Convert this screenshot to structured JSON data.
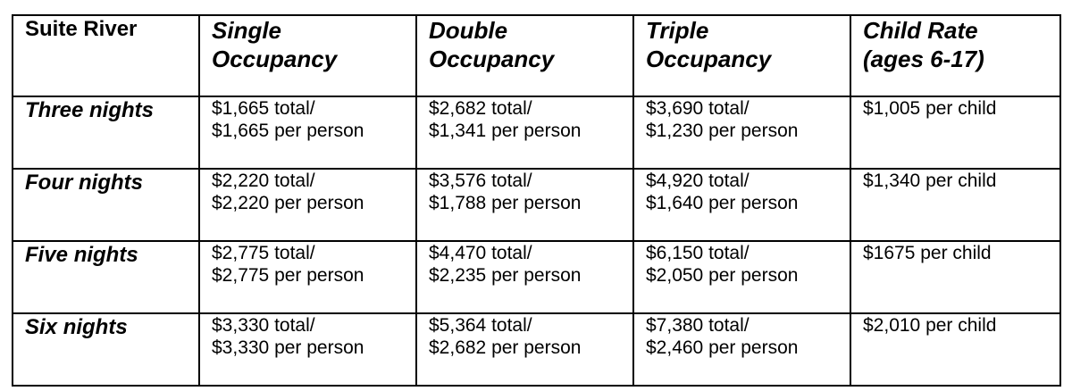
{
  "table": {
    "corner_label": "Suite River",
    "columns": [
      {
        "line1": "Single",
        "line2": "Occupancy"
      },
      {
        "line1": "Double",
        "line2": "Occupancy"
      },
      {
        "line1": "Triple",
        "line2": "Occupancy"
      },
      {
        "line1": "Child Rate",
        "line2": "(ages 6-17)"
      }
    ],
    "rows": [
      {
        "label": "Three nights",
        "single": {
          "total": "$1,665 total/",
          "per_person": "$1,665 per person"
        },
        "double": {
          "total": "$2,682 total/",
          "per_person": "$1,341 per person"
        },
        "triple": {
          "total": "$3,690 total/",
          "per_person": "$1,230 per person"
        },
        "child": "$1,005 per child"
      },
      {
        "label": "Four nights",
        "single": {
          "total": "$2,220 total/",
          "per_person": "$2,220 per person"
        },
        "double": {
          "total": "$3,576 total/",
          "per_person": "$1,788 per person"
        },
        "triple": {
          "total": "$4,920 total/",
          "per_person": "$1,640 per person"
        },
        "child": "$1,340 per child"
      },
      {
        "label": "Five nights",
        "single": {
          "total": "$2,775 total/",
          "per_person": "$2,775 per person"
        },
        "double": {
          "total": "$4,470 total/",
          "per_person": "$2,235 per person"
        },
        "triple": {
          "total": "$6,150 total/",
          "per_person": "$2,050 per person"
        },
        "child": "$1675 per child"
      },
      {
        "label": "Six nights",
        "single": {
          "total": "$3,330 total/",
          "per_person": "$3,330 per person"
        },
        "double": {
          "total": "$5,364 total/",
          "per_person": "$2,682 per person"
        },
        "triple": {
          "total": "$7,380 total/",
          "per_person": "$2,460 per person"
        },
        "child": "$2,010 per child"
      }
    ]
  }
}
